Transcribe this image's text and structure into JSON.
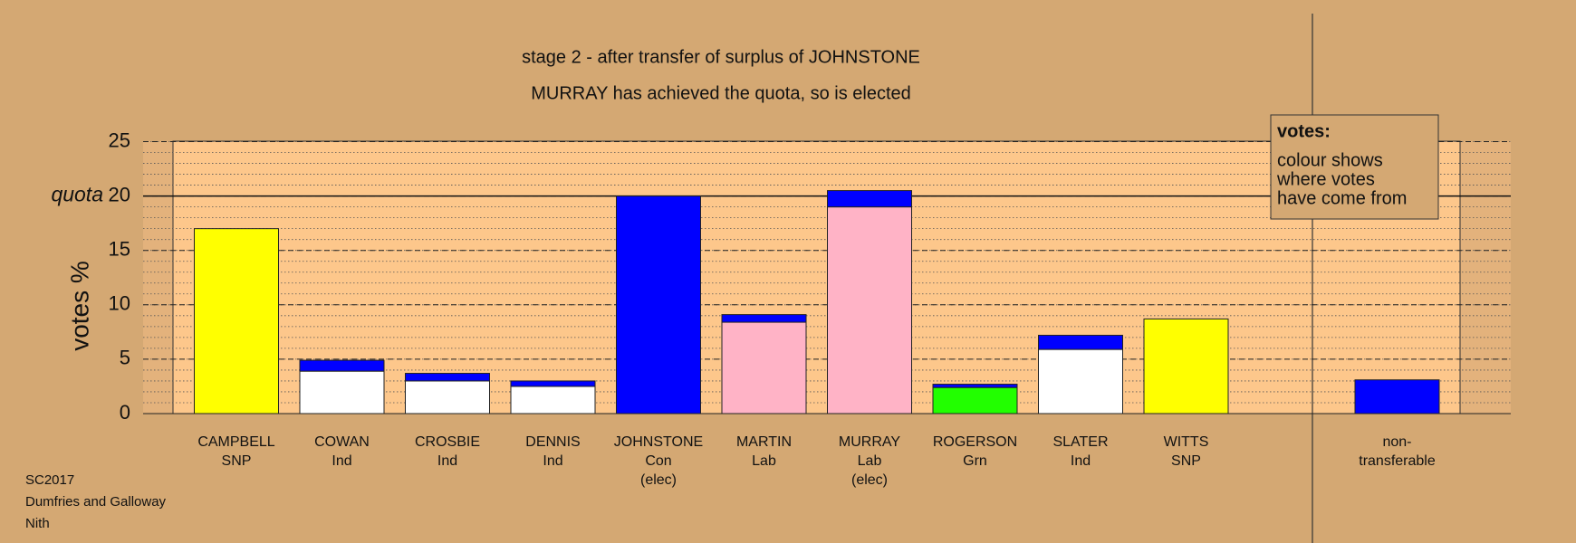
{
  "chart_data": {
    "type": "stacked-bar",
    "title_lines": [
      "stage 2 - after transfer of surplus of JOHNSTONE",
      "MURRAY has achieved the quota, so is elected"
    ],
    "y_label": "votes %",
    "categories": [
      [
        "CAMPBELL",
        "SNP"
      ],
      [
        "COWAN",
        "Ind"
      ],
      [
        "CROSBIE",
        "Ind"
      ],
      [
        "DENNIS",
        "Ind"
      ],
      [
        "JOHNSTONE",
        "Con",
        "(elec)"
      ],
      [
        "MARTIN",
        "Lab"
      ],
      [
        "MURRAY",
        "Lab",
        "(elec)"
      ],
      [
        "ROGERSON",
        "Grn"
      ],
      [
        "SLATER",
        "Ind"
      ],
      [
        "WITTS",
        "SNP"
      ],
      [
        "non-",
        "transferable"
      ]
    ],
    "series": [
      {
        "colors": [
          "#ffff00",
          "#ffffff",
          "#ffffff",
          "#ffffff",
          "#0000ff",
          "#ffb3c6",
          "#ffb3c6",
          "#22ff00",
          "#ffffff",
          "#ffff00",
          "#0000ff"
        ],
        "values": [
          17.0,
          3.9,
          3.0,
          2.5,
          20.0,
          8.4,
          19.0,
          2.4,
          5.9,
          8.7,
          0
        ]
      },
      {
        "color": "#0000ff",
        "values": [
          0,
          1.0,
          0.7,
          0.5,
          0,
          0.7,
          1.5,
          0.3,
          1.3,
          0,
          3.1
        ]
      }
    ],
    "ylim": [
      0,
      25
    ],
    "yticks": [
      0,
      5,
      10,
      15,
      20,
      25
    ],
    "minor_step": 1,
    "quota": {
      "value": 20,
      "label": "quota"
    },
    "legend": {
      "title": "votes:",
      "lines": [
        "colour shows",
        "where votes",
        "have come from"
      ]
    },
    "footer": [
      "SC2017",
      "Dumfries and Galloway",
      "Nith"
    ]
  }
}
